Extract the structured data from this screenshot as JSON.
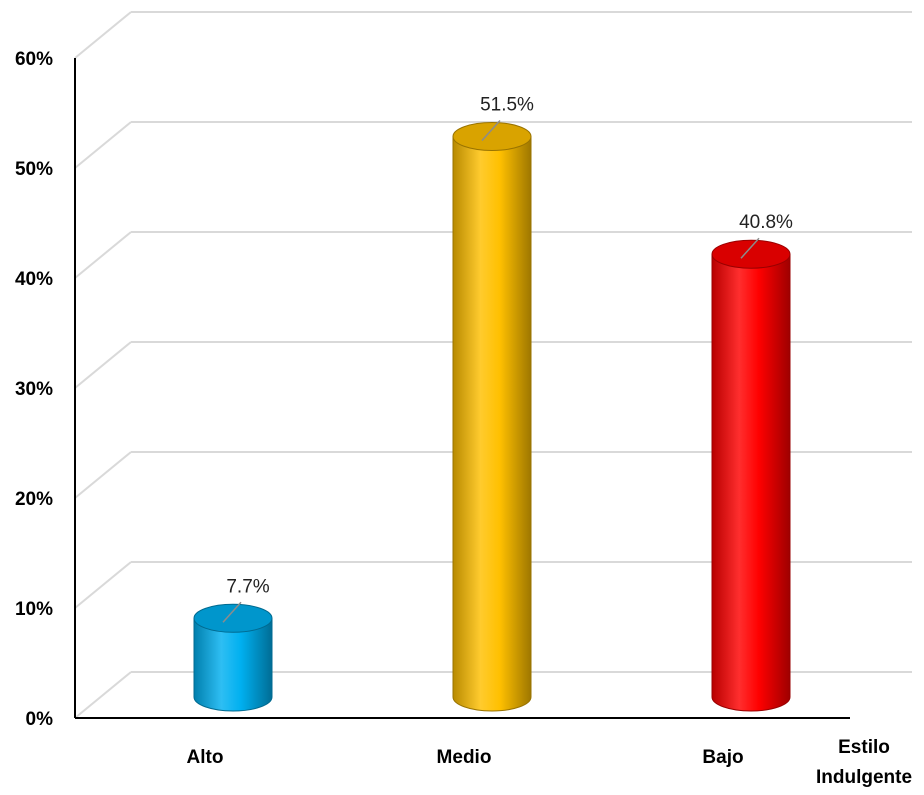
{
  "chart_data": {
    "type": "bar",
    "style": "3d-cylinder",
    "title": "",
    "categories": [
      "Alto",
      "Medio",
      "Bajo"
    ],
    "values": [
      7.7,
      51.5,
      40.8
    ],
    "data_labels": [
      "7.7%",
      "51.5%",
      "40.8%"
    ],
    "colors": [
      "#00b0f0",
      "#ffc000",
      "#ff0000"
    ],
    "xlabel_lines": [
      "Estilo",
      "Indulgente"
    ],
    "ylabel": "",
    "ylim": [
      0,
      60
    ],
    "yticks": [
      {
        "value": 0,
        "label": "0%"
      },
      {
        "value": 10,
        "label": "10%"
      },
      {
        "value": 20,
        "label": "20%"
      },
      {
        "value": 30,
        "label": "30%"
      },
      {
        "value": 40,
        "label": "40%"
      },
      {
        "value": 50,
        "label": "50%"
      },
      {
        "value": 60,
        "label": "60%"
      }
    ],
    "grid": true,
    "legend": "none"
  }
}
